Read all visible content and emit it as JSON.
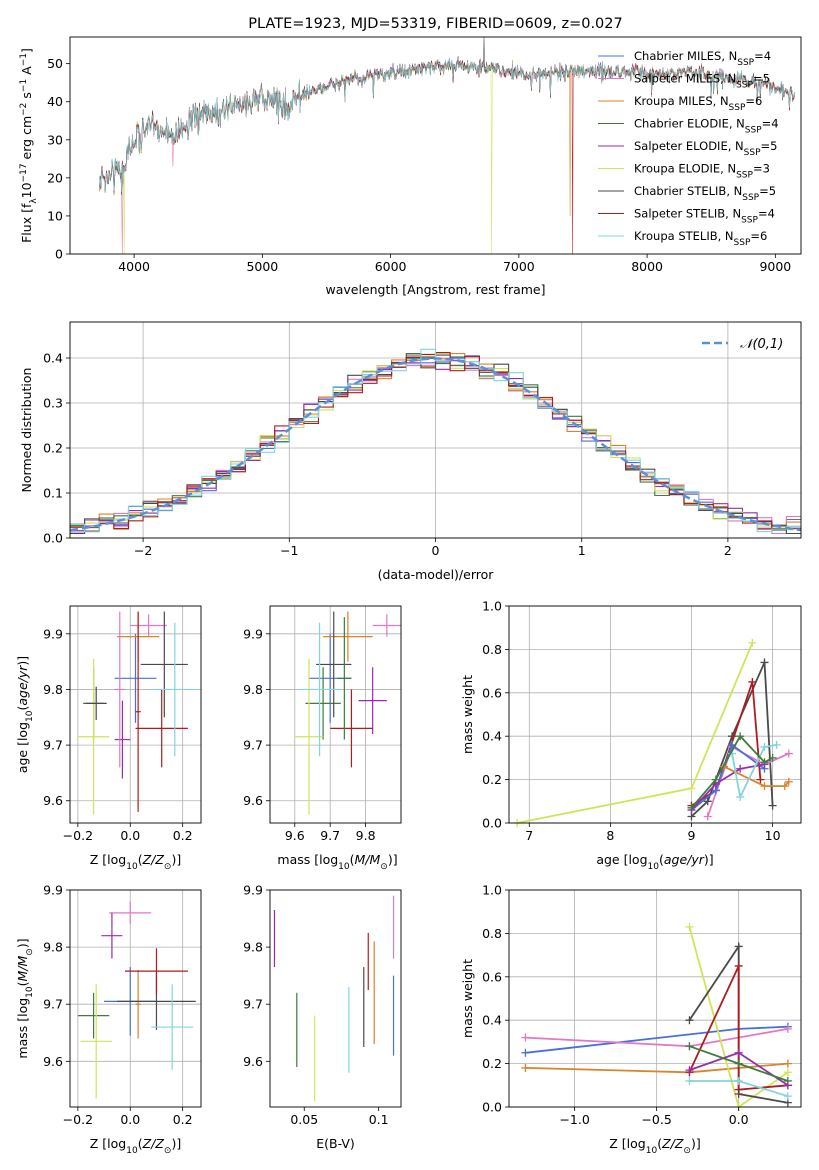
{
  "chart_data": [
    {
      "type": "line",
      "title": "PLATE=1923, MJD=53319, FIBERID=0609, z=0.027",
      "xlabel": "wavelength [Angstrom, rest frame]",
      "ylabel": "Flux [f_λ10^-17 erg cm^-2 s^-1 A^-1]",
      "xlim": [
        3500,
        9200
      ],
      "ylim": [
        0,
        57
      ],
      "xticks": [
        4000,
        5000,
        6000,
        7000,
        8000,
        9000
      ],
      "yticks": [
        0,
        10,
        20,
        30,
        40,
        50
      ],
      "legend_position": "right",
      "continuum": [
        [
          3730,
          20
        ],
        [
          3800,
          21
        ],
        [
          3900,
          22
        ],
        [
          4000,
          30
        ],
        [
          4100,
          33
        ],
        [
          4200,
          33
        ],
        [
          4300,
          31
        ],
        [
          4500,
          36
        ],
        [
          4700,
          38
        ],
        [
          4900,
          40
        ],
        [
          5100,
          41
        ],
        [
          5200,
          38
        ],
        [
          5300,
          42
        ],
        [
          5500,
          44
        ],
        [
          5700,
          46
        ],
        [
          5900,
          47
        ],
        [
          6100,
          48
        ],
        [
          6300,
          49
        ],
        [
          6500,
          50
        ],
        [
          6700,
          49
        ],
        [
          6900,
          48
        ],
        [
          7100,
          47
        ],
        [
          7300,
          48
        ],
        [
          7500,
          48
        ],
        [
          7700,
          48
        ],
        [
          7900,
          48
        ],
        [
          8100,
          47
        ],
        [
          8300,
          48
        ],
        [
          8500,
          47
        ],
        [
          8700,
          46
        ],
        [
          8900,
          45
        ],
        [
          9100,
          42
        ]
      ],
      "series": [
        {
          "name": "Chabrier MILES",
          "nssp": "4",
          "color": "#4a6fdc"
        },
        {
          "name": "Salpeter MILES",
          "nssp": "5",
          "color": "#e377c2"
        },
        {
          "name": "Kroupa MILES",
          "nssp": "6",
          "color": "#d9832a"
        },
        {
          "name": "Chabrier ELODIE",
          "nssp": "4",
          "color": "#3e7d3e"
        },
        {
          "name": "Salpeter ELODIE",
          "nssp": "5",
          "color": "#9a2bb0"
        },
        {
          "name": "Kroupa ELODIE",
          "nssp": "3",
          "color": "#d2e35a"
        },
        {
          "name": "Chabrier STELIB",
          "nssp": "5",
          "color": "#4a4a4a"
        },
        {
          "name": "Salpeter STELIB",
          "nssp": "4",
          "color": "#b01c1c"
        },
        {
          "name": "Kroupa STELIB",
          "nssp": "6",
          "color": "#7fd6de"
        }
      ]
    },
    {
      "type": "histogram",
      "xlabel": "(data-model)/error",
      "ylabel": "Normed distribution",
      "xlim": [
        -2.5,
        2.5
      ],
      "ylim": [
        0,
        0.48
      ],
      "xticks": [
        -2,
        -1,
        0,
        1,
        2
      ],
      "yticks": [
        0.0,
        0.1,
        0.2,
        0.3,
        0.4
      ],
      "grid": true,
      "gaussian_label": "𝒩(0,1)",
      "gaussian_color": "#5b8fd9",
      "bin_width": 0.1
    },
    {
      "type": "scatter",
      "name": "age-vs-Z",
      "xlabel": "Z [log10(Z/Z⊙)]",
      "ylabel": "age [log10(age/yr)]",
      "xlim": [
        -0.23,
        0.27
      ],
      "ylim": [
        9.56,
        9.95
      ],
      "xticks": [
        -0.2,
        0.0,
        0.2
      ],
      "yticks": [
        9.6,
        9.7,
        9.8,
        9.9
      ],
      "grid": true,
      "points": [
        {
          "x": 0.02,
          "xerr": 0.08,
          "y": 9.82,
          "yerr": 0.08,
          "color": "#4a6fdc"
        },
        {
          "x": 0.07,
          "xerr": 0.07,
          "y": 9.915,
          "yerr": 0.02,
          "color": "#e377c2"
        },
        {
          "x": 0.03,
          "xerr": 0.08,
          "y": 9.895,
          "yerr": 0.045,
          "color": "#d9832a"
        },
        {
          "x": -0.14,
          "xerr": 0.04,
          "y": 9.775,
          "yerr": 0.065,
          "color": "#3e7d3e"
        },
        {
          "x": -0.03,
          "xerr": 0.03,
          "y": 9.71,
          "yerr": 0.07,
          "color": "#9a2bb0"
        },
        {
          "x": -0.14,
          "xerr": 0.06,
          "y": 9.715,
          "yerr": 0.14,
          "color": "#d2e35a"
        },
        {
          "x": 0.13,
          "xerr": 0.09,
          "y": 9.845,
          "yerr": 0.095,
          "color": "#4a4a4a"
        },
        {
          "x": 0.12,
          "xerr": 0.1,
          "y": 9.73,
          "yerr": 0.07,
          "color": "#b01c1c"
        },
        {
          "x": 0.17,
          "xerr": 0.09,
          "y": 9.8,
          "yerr": 0.12,
          "color": "#7fd6de"
        },
        {
          "x": -0.13,
          "xerr": 0.04,
          "y": 9.775,
          "yerr": 0.03,
          "color": "#4a4a4a"
        },
        {
          "x": -0.04,
          "xerr": 0.02,
          "y": 9.8,
          "yerr": 0.14,
          "color": "#e377c2"
        },
        {
          "x": 0.03,
          "xerr": 0.01,
          "y": 9.76,
          "yerr": 0.18,
          "color": "#b01c1c"
        }
      ]
    },
    {
      "type": "scatter",
      "name": "age-vs-mass",
      "xlabel": "mass [log10(M/M⊙)]",
      "ylabel": "",
      "xlim": [
        9.53,
        9.9
      ],
      "ylim": [
        9.56,
        9.95
      ],
      "xticks": [
        9.6,
        9.7,
        9.8
      ],
      "yticks": [
        9.6,
        9.7,
        9.8,
        9.9
      ],
      "grid": true,
      "points": [
        {
          "x": 9.7,
          "xerr": 0.06,
          "y": 9.82,
          "yerr": 0.08,
          "color": "#4a6fdc"
        },
        {
          "x": 9.86,
          "xerr": 0.04,
          "y": 9.915,
          "yerr": 0.02,
          "color": "#e377c2"
        },
        {
          "x": 9.75,
          "xerr": 0.07,
          "y": 9.895,
          "yerr": 0.045,
          "color": "#d9832a"
        },
        {
          "x": 9.68,
          "xerr": 0.05,
          "y": 9.775,
          "yerr": 0.065,
          "color": "#3e7d3e"
        },
        {
          "x": 9.82,
          "xerr": 0.04,
          "y": 9.78,
          "yerr": 0.06,
          "color": "#9a2bb0"
        },
        {
          "x": 9.64,
          "xerr": 0.04,
          "y": 9.715,
          "yerr": 0.14,
          "color": "#d2e35a"
        },
        {
          "x": 9.71,
          "xerr": 0.05,
          "y": 9.845,
          "yerr": 0.095,
          "color": "#4a4a4a"
        },
        {
          "x": 9.76,
          "xerr": 0.06,
          "y": 9.73,
          "yerr": 0.07,
          "color": "#b01c1c"
        },
        {
          "x": 9.67,
          "xerr": 0.06,
          "y": 9.8,
          "yerr": 0.12,
          "color": "#7fd6de"
        },
        {
          "x": 9.74,
          "xerr": 0.02,
          "y": 9.82,
          "yerr": 0.11,
          "color": "#3e7d3e"
        }
      ]
    },
    {
      "type": "line",
      "name": "weight-vs-age",
      "xlabel": "age [log10(age/yr)]",
      "ylabel": "mass weight",
      "xlim": [
        6.75,
        10.35
      ],
      "ylim": [
        0,
        1
      ],
      "xticks": [
        7,
        8,
        9,
        10
      ],
      "yticks": [
        0.0,
        0.2,
        0.4,
        0.6,
        0.8,
        1.0
      ],
      "grid": true,
      "series": [
        {
          "color": "#d2e35a",
          "points": [
            [
              6.85,
              0.0
            ],
            [
              9.0,
              0.16
            ],
            [
              9.75,
              0.83
            ]
          ]
        },
        {
          "color": "#4a4a4a",
          "points": [
            [
              9.0,
              0.03
            ],
            [
              9.2,
              0.1
            ],
            [
              9.5,
              0.4
            ],
            [
              9.9,
              0.74
            ],
            [
              10.0,
              0.08
            ]
          ]
        },
        {
          "color": "#b01c1c",
          "points": [
            [
              9.0,
              0.08
            ],
            [
              9.3,
              0.15
            ],
            [
              9.75,
              0.65
            ],
            [
              9.85,
              0.2
            ]
          ]
        },
        {
          "color": "#e377c2",
          "points": [
            [
              9.2,
              0.03
            ],
            [
              9.5,
              0.35
            ],
            [
              9.9,
              0.27
            ],
            [
              10.2,
              0.32
            ]
          ]
        },
        {
          "color": "#4a6fdc",
          "points": [
            [
              9.0,
              0.06
            ],
            [
              9.3,
              0.15
            ],
            [
              9.5,
              0.36
            ],
            [
              9.9,
              0.25
            ]
          ]
        },
        {
          "color": "#9a2bb0",
          "points": [
            [
              9.0,
              0.06
            ],
            [
              9.3,
              0.18
            ],
            [
              9.6,
              0.25
            ],
            [
              9.9,
              0.27
            ]
          ]
        },
        {
          "color": "#d9832a",
          "points": [
            [
              9.4,
              0.26
            ],
            [
              9.9,
              0.17
            ],
            [
              10.15,
              0.17
            ],
            [
              10.2,
              0.19
            ]
          ]
        },
        {
          "color": "#7fd6de",
          "points": [
            [
              9.5,
              0.32
            ],
            [
              9.6,
              0.12
            ],
            [
              9.9,
              0.35
            ],
            [
              10.05,
              0.36
            ]
          ]
        },
        {
          "color": "#3e7d3e",
          "points": [
            [
              9.0,
              0.07
            ],
            [
              9.3,
              0.2
            ],
            [
              9.6,
              0.4
            ],
            [
              9.9,
              0.28
            ],
            [
              10.0,
              0.3
            ]
          ]
        }
      ]
    },
    {
      "type": "scatter",
      "name": "mass-vs-Z",
      "xlabel": "Z [log10(Z/Z⊙)]",
      "ylabel": "mass [log10(M/M⊙)]",
      "xlim": [
        -0.23,
        0.27
      ],
      "ylim": [
        9.52,
        9.9
      ],
      "xticks": [
        -0.2,
        0.0,
        0.2
      ],
      "yticks": [
        9.6,
        9.7,
        9.8,
        9.9
      ],
      "grid": true,
      "points": [
        {
          "x": 0.0,
          "xerr": 0.1,
          "y": 9.705,
          "yerr": 0.06,
          "color": "#4a6fdc"
        },
        {
          "x": 0.0,
          "xerr": 0.08,
          "y": 9.86,
          "yerr": 0.02,
          "color": "#e377c2"
        },
        {
          "x": 0.03,
          "xerr": 0.01,
          "y": 9.7,
          "yerr": 0.06,
          "color": "#d9832a"
        },
        {
          "x": -0.14,
          "xerr": 0.06,
          "y": 9.68,
          "yerr": 0.04,
          "color": "#3e7d3e"
        },
        {
          "x": -0.07,
          "xerr": 0.04,
          "y": 9.82,
          "yerr": 0.04,
          "color": "#9a2bb0"
        },
        {
          "x": -0.13,
          "xerr": 0.06,
          "y": 9.635,
          "yerr": 0.1,
          "color": "#d2e35a"
        },
        {
          "x": 0.1,
          "xerr": 0.15,
          "y": 9.705,
          "yerr": 0.05,
          "color": "#4a4a4a"
        },
        {
          "x": 0.1,
          "xerr": 0.12,
          "y": 9.758,
          "yerr": 0.04,
          "color": "#b01c1c"
        },
        {
          "x": 0.16,
          "xerr": 0.08,
          "y": 9.66,
          "yerr": 0.075,
          "color": "#7fd6de"
        }
      ]
    },
    {
      "type": "scatter",
      "name": "mass-vs-EBV",
      "xlabel": "E(B-V)",
      "ylabel": "",
      "xlim": [
        0.027,
        0.115
      ],
      "ylim": [
        9.52,
        9.9
      ],
      "xticks": [
        0.05,
        0.1
      ],
      "yticks": [
        9.6,
        9.7,
        9.8,
        9.9
      ],
      "grid": false,
      "points": [
        {
          "x": 0.03,
          "y": 9.815,
          "yerr": 0.05,
          "color": "#9a2bb0"
        },
        {
          "x": 0.045,
          "y": 9.655,
          "yerr": 0.065,
          "color": "#3e7d3e"
        },
        {
          "x": 0.057,
          "y": 9.605,
          "yerr": 0.075,
          "color": "#d2e35a"
        },
        {
          "x": 0.08,
          "y": 9.655,
          "yerr": 0.075,
          "color": "#7fd6de"
        },
        {
          "x": 0.09,
          "y": 9.695,
          "yerr": 0.07,
          "color": "#4a4a4a"
        },
        {
          "x": 0.093,
          "y": 9.775,
          "yerr": 0.05,
          "color": "#b01c1c"
        },
        {
          "x": 0.097,
          "y": 9.72,
          "yerr": 0.09,
          "color": "#d9832a"
        },
        {
          "x": 0.11,
          "y": 9.835,
          "yerr": 0.055,
          "color": "#e377c2"
        },
        {
          "x": 0.11,
          "y": 9.68,
          "yerr": 0.07,
          "color": "#4a6fdc"
        }
      ]
    },
    {
      "type": "line",
      "name": "weight-vs-Z",
      "xlabel": "Z [log10(Z/Z⊙)]",
      "ylabel": "mass weight",
      "xlim": [
        -1.4,
        0.38
      ],
      "ylim": [
        0,
        1
      ],
      "xticks": [
        -1.0,
        -0.5,
        0.0
      ],
      "yticks": [
        0.0,
        0.2,
        0.4,
        0.6,
        0.8,
        1.0
      ],
      "grid": true,
      "series": [
        {
          "color": "#4a6fdc",
          "points": [
            [
              -1.3,
              0.25
            ],
            [
              0.0,
              0.36
            ],
            [
              0.3,
              0.37
            ]
          ]
        },
        {
          "color": "#e377c2",
          "points": [
            [
              -1.3,
              0.32
            ],
            [
              -0.3,
              0.28
            ],
            [
              0.3,
              0.36
            ]
          ]
        },
        {
          "color": "#d9832a",
          "points": [
            [
              -1.3,
              0.18
            ],
            [
              -0.3,
              0.16
            ],
            [
              0.3,
              0.2
            ]
          ]
        },
        {
          "color": "#d2e35a",
          "points": [
            [
              -0.3,
              0.83
            ],
            [
              0.0,
              0.0
            ],
            [
              0.3,
              0.16
            ]
          ]
        },
        {
          "color": "#4a4a4a",
          "points": [
            [
              -0.3,
              0.4
            ],
            [
              0.0,
              0.74
            ],
            [
              0.0,
              0.06
            ],
            [
              0.3,
              0.02
            ]
          ]
        },
        {
          "color": "#b01c1c",
          "points": [
            [
              -0.3,
              0.16
            ],
            [
              0.0,
              0.65
            ],
            [
              0.0,
              0.08
            ],
            [
              0.3,
              0.1
            ]
          ]
        },
        {
          "color": "#9a2bb0",
          "points": [
            [
              -0.3,
              0.17
            ],
            [
              0.0,
              0.25
            ],
            [
              0.3,
              0.1
            ]
          ]
        },
        {
          "color": "#7fd6de",
          "points": [
            [
              -0.3,
              0.12
            ],
            [
              0.0,
              0.12
            ],
            [
              0.3,
              0.05
            ]
          ]
        },
        {
          "color": "#3e7d3e",
          "points": [
            [
              -0.3,
              0.28
            ],
            [
              0.0,
              0.2
            ],
            [
              0.3,
              0.12
            ]
          ]
        }
      ]
    }
  ]
}
